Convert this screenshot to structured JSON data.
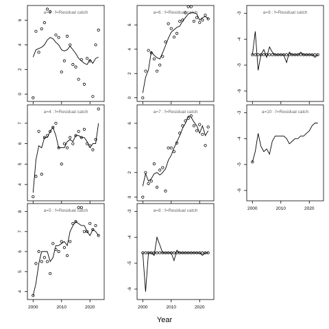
{
  "figure": {
    "xlabel": "Year"
  },
  "chart_data": [
    {
      "type": "scatter",
      "title": "a=3  :  f=Residual catch",
      "xlim": [
        1998,
        2025
      ],
      "ylim": [
        -0.6,
        7.2
      ],
      "yticks": [
        0,
        2,
        4,
        6
      ],
      "xticks": [
        2000,
        2010,
        2020
      ],
      "show_xticklabels": false,
      "obs_x": [
        2000,
        2001,
        2002,
        2003,
        2004,
        2005,
        2006,
        2007,
        2008,
        2009,
        2010,
        2011,
        2012,
        2013,
        2014,
        2015,
        2016,
        2017,
        2018,
        2019,
        2020,
        2021,
        2022,
        2023
      ],
      "obs_y": [
        -0.3,
        5.1,
        3.4,
        5.3,
        5.8,
        6.9,
        6.7,
        null,
        4.8,
        4.6,
        1.8,
        2.7,
        4.7,
        4.0,
        2.4,
        2.2,
        1.2,
        2.8,
        0.8,
        2.9,
        2.7,
        -0.2,
        4.0,
        5.2
      ],
      "fit_x": [
        2000,
        2001,
        2002,
        2003,
        2004,
        2005,
        2006,
        2007,
        2008,
        2009,
        2010,
        2011,
        2012,
        2013,
        2014,
        2015,
        2016,
        2017,
        2018,
        2019,
        2020,
        2021,
        2022,
        2023
      ],
      "fit_y": [
        3.0,
        3.6,
        3.7,
        3.8,
        4.0,
        4.4,
        4.6,
        4.5,
        4.2,
        4.0,
        3.6,
        3.5,
        3.6,
        3.9,
        3.6,
        3.3,
        2.9,
        2.7,
        2.5,
        2.4,
        2.8,
        2.5,
        2.9,
        3.0
      ]
    },
    {
      "type": "scatter",
      "title": "a=6  :  f=Residual catch",
      "xlim": [
        1998,
        2025
      ],
      "ylim": [
        -0.3,
        7.6
      ],
      "yticks": [
        0,
        2,
        4,
        6
      ],
      "xticks": [
        2000,
        2010,
        2020
      ],
      "show_xticklabels": false,
      "obs_x": [
        2000,
        2001,
        2002,
        2003,
        2004,
        2005,
        2006,
        2007,
        2008,
        2009,
        2010,
        2011,
        2012,
        2013,
        2014,
        2015,
        2016,
        2017,
        2018,
        2019,
        2020,
        2021,
        2022,
        2023
      ],
      "obs_y": [
        0.0,
        2.2,
        3.9,
        3.7,
        3.2,
        2.2,
        2.7,
        3.4,
        4.6,
        6.1,
        5.7,
        5.0,
        5.3,
        6.3,
        6.4,
        7.0,
        7.5,
        7.5,
        6.3,
        6.6,
        6.2,
        6.4,
        6.8,
        6.5
      ],
      "fit_x": [
        2000,
        2001,
        2002,
        2003,
        2004,
        2005,
        2006,
        2007,
        2008,
        2009,
        2010,
        2011,
        2012,
        2013,
        2014,
        2015,
        2016,
        2017,
        2018,
        2019,
        2020,
        2021,
        2022,
        2023
      ],
      "fit_y": [
        0.4,
        1.7,
        2.3,
        3.8,
        3.5,
        3.3,
        3.2,
        3.7,
        4.3,
        4.9,
        5.4,
        5.6,
        5.8,
        5.9,
        6.3,
        6.6,
        6.9,
        7.0,
        7.0,
        6.9,
        6.4,
        6.6,
        6.7,
        6.5
      ]
    },
    {
      "type": "scatter",
      "title": "a=9  :  f=Residual catch",
      "xlim": [
        1998,
        2025
      ],
      "ylim": [
        -6.4,
        -2.7
      ],
      "yticks": [
        -6,
        -5,
        -4,
        -3
      ],
      "xticks": [
        2000,
        2010,
        2020
      ],
      "show_xticklabels": false,
      "obs_x": [
        2000,
        2001,
        2002,
        2003,
        2004,
        2005,
        2006,
        2007,
        2008,
        2009,
        2010,
        2011,
        2012,
        2013,
        2014,
        2015,
        2016,
        2017,
        2018,
        2019,
        2020,
        2021,
        2022,
        2023
      ],
      "obs_y": [
        -4.6,
        -4.6,
        -4.6,
        -4.6,
        -4.6,
        -4.6,
        -4.6,
        -4.6,
        -4.6,
        -4.6,
        -4.6,
        -4.6,
        -4.6,
        -4.6,
        -4.6,
        -4.6,
        -4.6,
        -4.6,
        -4.6,
        -4.6,
        -4.6,
        -4.6,
        -4.6,
        -4.6
      ],
      "fit_x": [
        2000,
        2001,
        2002,
        2003,
        2004,
        2005,
        2006,
        2007,
        2008,
        2009,
        2010,
        2011,
        2012,
        2013,
        2014,
        2015,
        2016,
        2017,
        2018,
        2019,
        2020,
        2021,
        2022,
        2023
      ],
      "fit_y": [
        -4.6,
        -3.7,
        -5.2,
        -4.6,
        -4.4,
        -4.7,
        -4.3,
        -4.5,
        -4.6,
        -4.6,
        -4.6,
        -4.6,
        -4.9,
        -4.5,
        -4.6,
        -4.6,
        -4.6,
        -4.5,
        -4.6,
        -4.6,
        -4.6,
        -4.6,
        -4.7,
        -4.6
      ]
    },
    {
      "type": "scatter",
      "title": "a=4  :  f=Residual catch",
      "xlim": [
        1998,
        2025
      ],
      "ylim": [
        3.2,
        7.9
      ],
      "yticks": [
        4,
        5,
        6,
        7
      ],
      "xticks": [
        2000,
        2010,
        2020
      ],
      "show_xticklabels": false,
      "obs_x": [
        2000,
        2001,
        2002,
        2003,
        2004,
        2005,
        2006,
        2007,
        2008,
        2009,
        2010,
        2011,
        2012,
        2013,
        2014,
        2015,
        2016,
        2017,
        2018,
        2019,
        2020,
        2021,
        2022,
        2023
      ],
      "obs_y": [
        3.4,
        4.4,
        6.6,
        4.5,
        6.3,
        6.4,
        6.6,
        6.8,
        7.0,
        5.8,
        5.0,
        6.0,
        5.8,
        6.3,
        6.0,
        6.4,
        6.6,
        6.3,
        6.7,
        6.0,
        5.9,
        5.7,
        6.2,
        7.7
      ],
      "fit_x": [
        2000,
        2001,
        2002,
        2003,
        2004,
        2005,
        2006,
        2007,
        2008,
        2009,
        2010,
        2011,
        2012,
        2013,
        2014,
        2015,
        2016,
        2017,
        2018,
        2019,
        2020,
        2021,
        2022,
        2023
      ],
      "fit_y": [
        3.6,
        5.2,
        5.9,
        5.8,
        6.3,
        6.3,
        6.6,
        6.8,
        6.4,
        5.8,
        5.8,
        5.8,
        6.1,
        6.2,
        6.1,
        6.4,
        6.4,
        6.3,
        6.3,
        6.1,
        5.8,
        6.0,
        6.0,
        7.0
      ]
    },
    {
      "type": "scatter",
      "title": "a=7  :  f=Residual catch",
      "xlim": [
        1998,
        2025
      ],
      "ylim": [
        -0.3,
        7.5
      ],
      "yticks": [
        0,
        2,
        4,
        6
      ],
      "xticks": [
        2000,
        2010,
        2020
      ],
      "show_xticklabels": false,
      "obs_x": [
        2000,
        2001,
        2002,
        2003,
        2004,
        2005,
        2006,
        2007,
        2008,
        2009,
        2010,
        2011,
        2012,
        2013,
        2014,
        2015,
        2016,
        2017,
        2018,
        2019,
        2020,
        2021,
        2022,
        2023
      ],
      "obs_y": [
        0.0,
        2.0,
        1.1,
        1.3,
        2.7,
        0.8,
        2.2,
        2.4,
        0.5,
        4.0,
        4.0,
        3.7,
        4.4,
        5.2,
        5.8,
        6.2,
        6.4,
        6.6,
        5.8,
        5.4,
        5.9,
        5.1,
        4.2,
        5.7
      ],
      "fit_x": [
        2000,
        2001,
        2002,
        2003,
        2004,
        2005,
        2006,
        2007,
        2008,
        2009,
        2010,
        2011,
        2012,
        2013,
        2014,
        2015,
        2016,
        2017,
        2018,
        2019,
        2020,
        2021,
        2022,
        2023
      ],
      "fit_y": [
        0.9,
        1.9,
        1.3,
        1.5,
        1.9,
        2.0,
        1.8,
        2.0,
        2.3,
        3.0,
        3.4,
        4.0,
        4.5,
        5.0,
        5.6,
        6.0,
        6.6,
        6.5,
        6.1,
        5.8,
        5.2,
        5.8,
        5.0,
        5.4
      ]
    },
    {
      "type": "line",
      "title": "a=10  :  f=Residual catch",
      "xlim": [
        1998,
        2025
      ],
      "ylim": [
        -6.4,
        -2.7
      ],
      "yticks": [
        -6,
        -5,
        -4,
        -3
      ],
      "xticks": [
        2000,
        2010,
        2020
      ],
      "show_xticklabels": true,
      "obs_x": [
        2000
      ],
      "obs_y": [
        -4.9
      ],
      "fit_x": [
        2000,
        2001,
        2002,
        2003,
        2004,
        2005,
        2006,
        2007,
        2008,
        2009,
        2010,
        2011,
        2012,
        2013,
        2014,
        2015,
        2016,
        2017,
        2018,
        2019,
        2020,
        2021,
        2022,
        2023
      ],
      "fit_y": [
        -4.9,
        -4.5,
        -3.8,
        -4.3,
        -4.5,
        -4.4,
        -4.6,
        -4.1,
        -3.9,
        -3.9,
        -3.9,
        -3.9,
        -4.0,
        -4.2,
        -4.1,
        -4.0,
        -4.0,
        -3.9,
        -3.9,
        -3.8,
        -3.7,
        -3.5,
        -3.4,
        -3.4
      ]
    },
    {
      "type": "scatter",
      "title": "a=5  :  f=Residual catch",
      "xlim": [
        1998,
        2025
      ],
      "ylim": [
        3.6,
        8.4
      ],
      "yticks": [
        4,
        5,
        6,
        7,
        8
      ],
      "xticks": [
        2000,
        2010,
        2020
      ],
      "show_xticklabels": true,
      "obs_x": [
        2000,
        2001,
        2002,
        2003,
        2004,
        2005,
        2006,
        2007,
        2008,
        2009,
        2010,
        2011,
        2012,
        2013,
        2014,
        2015,
        2016,
        2017,
        2018,
        2019,
        2020,
        2021,
        2022,
        2023
      ],
      "obs_y": [
        3.8,
        5.4,
        6.0,
        5.5,
        5.7,
        5.5,
        4.9,
        6.4,
        6.1,
        6.0,
        6.5,
        6.2,
        5.8,
        6.5,
        7.4,
        7.5,
        8.2,
        8.2,
        7.0,
        7.0,
        7.4,
        7.1,
        7.3,
        6.8
      ],
      "fit_x": [
        2000,
        2001,
        2002,
        2003,
        2004,
        2005,
        2006,
        2007,
        2008,
        2009,
        2010,
        2011,
        2012,
        2013,
        2014,
        2015,
        2016,
        2017,
        2018,
        2019,
        2020,
        2021,
        2022,
        2023
      ],
      "fit_y": [
        3.8,
        4.4,
        5.4,
        6.0,
        6.0,
        6.0,
        5.5,
        5.7,
        6.3,
        6.3,
        6.4,
        6.5,
        6.3,
        7.0,
        7.3,
        7.5,
        7.4,
        7.3,
        7.3,
        7.0,
        6.8,
        7.1,
        7.0,
        6.8
      ]
    },
    {
      "type": "scatter",
      "title": "a=8  :  f=Residual catch",
      "xlim": [
        1998,
        2025
      ],
      "ylim": [
        -6.4,
        -2.7
      ],
      "yticks": [
        -6,
        -5,
        -4,
        -3
      ],
      "xticks": [
        2000,
        2010,
        2020
      ],
      "show_xticklabels": true,
      "obs_x": [
        2000,
        2001,
        2002,
        2003,
        2004,
        2005,
        2006,
        2007,
        2008,
        2009,
        2010,
        2011,
        2012,
        2013,
        2014,
        2015,
        2016,
        2017,
        2018,
        2019,
        2020,
        2021,
        2022,
        2023
      ],
      "obs_y": [
        -4.6,
        -4.6,
        -4.6,
        -4.6,
        -4.6,
        -4.6,
        -4.6,
        -4.6,
        -4.6,
        -4.6,
        -4.6,
        -4.6,
        -4.6,
        -4.6,
        -4.6,
        -4.6,
        -4.6,
        -4.6,
        -4.6,
        -4.6,
        -4.6,
        -4.6,
        -4.6,
        -4.6
      ],
      "fit_x": [
        2000,
        2001,
        2002,
        2003,
        2004,
        2005,
        2006,
        2007,
        2008,
        2009,
        2010,
        2011,
        2012,
        2013,
        2014,
        2015,
        2016,
        2017,
        2018,
        2019,
        2020,
        2021,
        2022,
        2023
      ],
      "fit_y": [
        -4.6,
        -6.1,
        -4.6,
        -4.6,
        -4.7,
        -4.0,
        -4.3,
        -4.6,
        -4.6,
        -4.6,
        -4.6,
        -4.9,
        -4.5,
        -4.6,
        -4.6,
        -4.6,
        -4.6,
        -4.6,
        -4.6,
        -4.6,
        -4.6,
        -4.7,
        -4.6,
        -4.6
      ]
    }
  ]
}
